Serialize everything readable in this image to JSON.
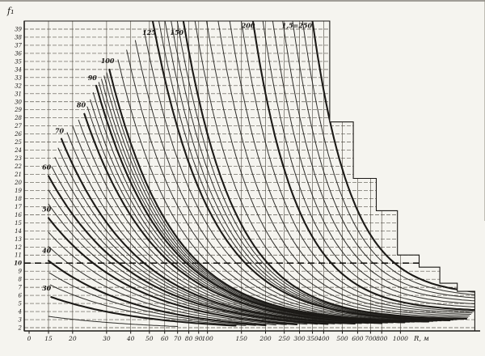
{
  "figure": {
    "background": "#f5f4ef",
    "ink": "#1b1916",
    "grid_color": "#4a453d"
  },
  "chart_data": {
    "type": "line",
    "title": "",
    "xlabel": "R, м",
    "ylabel": "f₁",
    "x_scale": "log",
    "xlim": [
      13,
      2430
    ],
    "ylim": [
      2,
      40
    ],
    "grid": true,
    "origin_label": "0",
    "x_tick_values": [
      15,
      20,
      30,
      40,
      50,
      60,
      70,
      80,
      90,
      100,
      150,
      200,
      250,
      300,
      350,
      400,
      500,
      600,
      700,
      800,
      1000
    ],
    "x_tick_labels": [
      "15",
      "20",
      "30",
      "40",
      "50",
      "60",
      "70",
      "80",
      "90",
      "100",
      "150",
      "200",
      "250",
      "300",
      "350",
      "400",
      "500",
      "600",
      "700",
      "800",
      "1000"
    ],
    "y_tick_values": [
      39,
      38,
      37,
      36,
      35,
      34,
      33,
      32,
      31,
      30,
      29,
      28,
      27,
      26,
      25,
      24,
      23,
      22,
      21,
      20,
      19,
      18,
      17,
      16,
      15,
      14,
      13,
      12,
      11,
      10,
      9,
      8,
      7,
      6,
      5,
      4,
      3,
      2
    ],
    "emphasized_y_tick": 10,
    "guide_line": {
      "f1": 10,
      "R_from": 13,
      "R_to": 1250,
      "style": "dashed-bold"
    },
    "envelope_steps": [
      {
        "R": 430,
        "f_down_to": 27.5
      },
      {
        "R": 570,
        "f_down_to": 20.5
      },
      {
        "R": 750,
        "f_down_to": 16.5
      },
      {
        "R": 965,
        "f_down_to": 11
      },
      {
        "R": 1250,
        "f_down_to": 9.5
      },
      {
        "R": 1600,
        "f_down_to": 7.5
      },
      {
        "R": 1970,
        "f_down_to": 6.5
      },
      {
        "R": 2430,
        "f_down_to": 2
      }
    ],
    "curves": [
      {
        "label": "30",
        "display": "30",
        "R_start": 15.5,
        "f_start": 5.8,
        "R_end": 140,
        "f_end": 2.25,
        "decay": 2.0,
        "label_R": 13.9,
        "label_f": 6.6
      },
      {
        "label": "40",
        "display": "40",
        "R_start": 15,
        "f_start": 10.3,
        "R_end": 200,
        "f_end": 2.3,
        "decay": 2.1,
        "label_R": 13.9,
        "label_f": 11.3
      },
      {
        "label": "50",
        "display": "50",
        "R_start": 15,
        "f_start": 15.6,
        "R_end": 290,
        "f_end": 2.4,
        "decay": 2.2,
        "label_R": 13.9,
        "label_f": 16.4
      },
      {
        "label": "60",
        "display": "60",
        "R_start": 15,
        "f_start": 20.8,
        "R_end": 420,
        "f_end": 2.45,
        "decay": 2.3,
        "label_R": 13.9,
        "label_f": 21.6
      },
      {
        "label": "70",
        "display": "70",
        "R_start": 17.5,
        "f_start": 25.4,
        "R_end": 580,
        "f_end": 2.5,
        "decay": 2.5,
        "label_R": 16.2,
        "label_f": 26.1
      },
      {
        "label": "80",
        "display": "80",
        "R_start": 23,
        "f_start": 28.5,
        "R_end": 800,
        "f_end": 2.55,
        "decay": 2.7,
        "label_R": 21.0,
        "label_f": 29.3
      },
      {
        "label": "90",
        "display": "90",
        "R_start": 26.5,
        "f_start": 32.0,
        "R_end": 1050,
        "f_end": 2.65,
        "decay": 2.9,
        "label_R": 24.0,
        "label_f": 32.7
      },
      {
        "label": "100",
        "display": "100",
        "R_start": 31,
        "f_start": 34.0,
        "R_end": 1400,
        "f_end": 2.75,
        "decay": 3.1,
        "label_R": 28.0,
        "label_f": 34.8
      },
      {
        "label": "125",
        "display": "125",
        "R_start": 52,
        "f_start": 40,
        "R_end": 1800,
        "f_end": 2.9,
        "decay": 3.4,
        "label_R": 46.0,
        "label_f": 38.3
      },
      {
        "label": "150",
        "display": "150",
        "R_start": 75,
        "f_start": 40,
        "R_end": 2200,
        "f_end": 3.1,
        "decay": 3.8,
        "label_R": 64.0,
        "label_f": 38.3
      },
      {
        "label": "200",
        "display": "200",
        "R_start": 172,
        "f_start": 40,
        "R_end": 2430,
        "f_end": 4.2,
        "decay": 4.4,
        "label_R": 150,
        "label_f": 39.15
      },
      {
        "label": "250",
        "display": "1,5=250",
        "R_start": 350,
        "f_start": 40,
        "R_end": 2430,
        "f_end": 6.45,
        "decay": 5.0,
        "label_R": 243,
        "label_f": 39.15
      }
    ],
    "thin_curves_between": [
      2,
      2,
      2,
      3,
      3,
      3,
      4,
      4,
      4,
      5,
      5
    ],
    "leading_thin_curve": {
      "R_start": 15,
      "f_start": 3.4,
      "R_end": 70,
      "f_end": 2.15,
      "decay": 1.8
    },
    "legend_position": "none"
  }
}
